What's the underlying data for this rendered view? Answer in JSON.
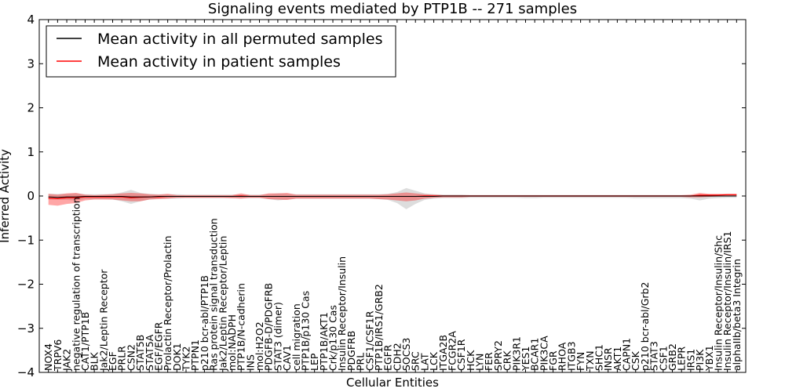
{
  "chart_data": {
    "type": "line",
    "title": "Signaling events mediated by PTP1B -- 271 samples",
    "xlabel": "Cellular Entities",
    "ylabel": "Inferred Activity",
    "ylim": [
      -4,
      4
    ],
    "yticks": [
      -4,
      -3,
      -2,
      -1,
      0,
      1,
      2,
      3,
      4
    ],
    "legend_position": "top-left",
    "categories": [
      "NOX4",
      "TRPV6",
      "JAK2",
      "negative regulation of transcription",
      "CAT1/PTP1B",
      "BLK",
      "Jak2/Leptin Receptor",
      "EGF",
      "PRLR",
      "CSN2",
      "STAT5B",
      "STAT5A",
      "EGF/EGFR",
      "Prolactin Receptor/Prolactin",
      "DOK1",
      "TYK2",
      "PTPN1",
      "p210 bcr-abl/PTP1B",
      "Ras protein signal transduction",
      "Jak2/Leptin Receptor/Leptin",
      "mol:NADPH",
      "PTP1B/N-cadherin",
      "INS",
      "mol:H2O2",
      "PDGFB-D/PDGFRB",
      "STAT3 (dimer)",
      "CAV1",
      "cell migration",
      "PTP1B/p130 Cas",
      "LEP",
      "PTP1B/AKT1",
      "Crk/p130 Cas",
      "Insulin Receptor/Insulin",
      "PDGFRB",
      "PRL",
      "CSF1/CSF1R",
      "PTP1B/IRS1/GRB2",
      "EGFR",
      "CDH2",
      "SOCS3",
      "SRC",
      "LAT",
      "LCK",
      "ITGA2B",
      "FCGR2A",
      "CSF1R",
      "HCK",
      "LYN",
      "FER",
      "SPRY2",
      "CRK",
      "PIK3R1",
      "YES1",
      "BCAR1",
      "PIK3CA",
      "FGR",
      "RHOA",
      "ITGB3",
      "FYN",
      "TXN",
      "SHC1",
      "INSR",
      "AKT1",
      "CAPN1",
      "CSK",
      "p210 bcr-abl/Grb2",
      "STAT3",
      "CSF1",
      "GRB2",
      "LEPR",
      "IRS1",
      "PI3K",
      "YBX1",
      "Insulin Receptor/Insulin/Shc",
      "Insulin Receptor/Insulin/IRS1",
      "alphaIIb/beta3 Integrin"
    ],
    "series": [
      {
        "name": "Mean activity in all permuted samples",
        "color": "#000000",
        "values": [
          -0.02,
          -0.03,
          -0.02,
          -0.02,
          -0.01,
          -0.01,
          -0.01,
          -0.01,
          -0.01,
          -0.02,
          -0.02,
          -0.02,
          -0.01,
          -0.01,
          -0.01,
          -0.01,
          -0.01,
          -0.01,
          -0.01,
          -0.01,
          -0.01,
          -0.01,
          -0.01,
          -0.01,
          -0.01,
          -0.01,
          -0.01,
          -0.01,
          -0.01,
          -0.01,
          -0.01,
          -0.01,
          -0.01,
          -0.01,
          -0.01,
          -0.01,
          -0.01,
          -0.01,
          -0.01,
          -0.01,
          -0.01,
          -0.01,
          -0.01,
          0.0,
          0.0,
          0.0,
          0.0,
          0.0,
          0.0,
          0.0,
          0.0,
          0.0,
          0.0,
          0.0,
          0.0,
          0.0,
          0.0,
          0.0,
          0.0,
          0.0,
          0.0,
          0.0,
          0.0,
          0.0,
          0.0,
          0.0,
          0.0,
          0.0,
          0.0,
          0.0,
          0.0,
          0.0,
          0.0,
          0.0,
          0.0,
          0.0
        ],
        "band_upper": [
          0.05,
          0.05,
          0.05,
          0.06,
          0.04,
          0.04,
          0.04,
          0.05,
          0.08,
          0.14,
          0.07,
          0.05,
          0.04,
          0.04,
          0.04,
          0.03,
          0.03,
          0.03,
          0.03,
          0.03,
          0.03,
          0.03,
          0.03,
          0.03,
          0.04,
          0.06,
          0.05,
          0.04,
          0.04,
          0.04,
          0.04,
          0.04,
          0.04,
          0.04,
          0.04,
          0.04,
          0.04,
          0.05,
          0.09,
          0.18,
          0.12,
          0.06,
          0.04,
          0.03,
          0.03,
          0.03,
          0.02,
          0.02,
          0.02,
          0.02,
          0.02,
          0.02,
          0.02,
          0.02,
          0.02,
          0.02,
          0.02,
          0.02,
          0.02,
          0.02,
          0.02,
          0.02,
          0.02,
          0.02,
          0.02,
          0.02,
          0.02,
          0.02,
          0.02,
          0.02,
          0.02,
          0.02,
          0.02,
          0.02,
          0.02,
          0.02
        ],
        "band_lower": [
          -0.08,
          -0.08,
          -0.09,
          -0.1,
          -0.07,
          -0.07,
          -0.07,
          -0.08,
          -0.12,
          -0.18,
          -0.12,
          -0.08,
          -0.06,
          -0.06,
          -0.06,
          -0.05,
          -0.05,
          -0.05,
          -0.05,
          -0.05,
          -0.05,
          -0.05,
          -0.05,
          -0.05,
          -0.07,
          -0.1,
          -0.08,
          -0.06,
          -0.06,
          -0.06,
          -0.06,
          -0.06,
          -0.06,
          -0.06,
          -0.06,
          -0.06,
          -0.07,
          -0.09,
          -0.16,
          -0.3,
          -0.18,
          -0.09,
          -0.06,
          -0.05,
          -0.05,
          -0.05,
          -0.04,
          -0.04,
          -0.04,
          -0.04,
          -0.04,
          -0.04,
          -0.05,
          -0.05,
          -0.04,
          -0.04,
          -0.04,
          -0.04,
          -0.04,
          -0.04,
          -0.04,
          -0.04,
          -0.04,
          -0.04,
          -0.05,
          -0.05,
          -0.05,
          -0.05,
          -0.05,
          -0.05,
          -0.06,
          -0.1,
          -0.06,
          -0.05,
          -0.04,
          -0.04
        ]
      },
      {
        "name": "Mean activity in patient samples",
        "color": "#ff0000",
        "values": [
          -0.05,
          -0.06,
          -0.04,
          -0.04,
          -0.02,
          -0.02,
          -0.02,
          -0.02,
          -0.02,
          -0.04,
          -0.03,
          -0.02,
          -0.02,
          -0.01,
          -0.01,
          -0.01,
          -0.01,
          -0.01,
          -0.01,
          -0.01,
          -0.01,
          0.0,
          -0.01,
          -0.01,
          -0.01,
          -0.01,
          -0.01,
          -0.01,
          -0.01,
          -0.01,
          -0.01,
          -0.01,
          -0.01,
          -0.01,
          -0.01,
          -0.01,
          -0.01,
          -0.01,
          -0.01,
          -0.01,
          -0.01,
          0.0,
          0.0,
          0.0,
          0.0,
          0.0,
          0.0,
          0.0,
          0.0,
          0.0,
          0.0,
          0.0,
          0.0,
          0.0,
          0.0,
          0.0,
          0.0,
          0.0,
          0.0,
          0.0,
          0.0,
          0.0,
          0.0,
          0.0,
          0.0,
          0.0,
          0.0,
          0.0,
          0.0,
          0.0,
          0.0,
          0.02,
          0.02,
          0.02,
          0.03,
          0.03
        ],
        "band_upper": [
          0.05,
          0.03,
          0.06,
          0.07,
          0.03,
          0.02,
          0.03,
          0.04,
          0.06,
          0.07,
          0.06,
          0.04,
          0.03,
          0.05,
          0.02,
          0.02,
          0.02,
          0.02,
          0.02,
          0.02,
          0.02,
          0.06,
          0.02,
          0.02,
          0.06,
          0.06,
          0.07,
          0.03,
          0.03,
          0.03,
          0.03,
          0.03,
          0.03,
          0.03,
          0.03,
          0.03,
          0.03,
          0.04,
          0.06,
          0.08,
          0.06,
          0.04,
          0.03,
          0.02,
          0.02,
          0.02,
          0.02,
          0.02,
          0.02,
          0.02,
          0.02,
          0.02,
          0.02,
          0.02,
          0.02,
          0.02,
          0.02,
          0.02,
          0.02,
          0.02,
          0.02,
          0.02,
          0.02,
          0.02,
          0.02,
          0.02,
          0.02,
          0.02,
          0.02,
          0.02,
          0.03,
          0.07,
          0.05,
          0.05,
          0.05,
          0.05
        ],
        "band_lower": [
          -0.2,
          -0.22,
          -0.18,
          -0.16,
          -0.1,
          -0.08,
          -0.08,
          -0.08,
          -0.1,
          -0.12,
          -0.12,
          -0.08,
          -0.07,
          -0.06,
          -0.04,
          -0.04,
          -0.04,
          -0.04,
          -0.04,
          -0.04,
          -0.05,
          -0.06,
          -0.04,
          -0.04,
          -0.07,
          -0.08,
          -0.09,
          -0.06,
          -0.06,
          -0.06,
          -0.06,
          -0.06,
          -0.06,
          -0.06,
          -0.06,
          -0.06,
          -0.07,
          -0.08,
          -0.1,
          -0.12,
          -0.1,
          -0.06,
          -0.04,
          -0.03,
          -0.03,
          -0.03,
          -0.02,
          -0.02,
          -0.02,
          -0.02,
          -0.02,
          -0.02,
          -0.02,
          -0.02,
          -0.02,
          -0.02,
          -0.02,
          -0.02,
          -0.02,
          -0.02,
          -0.02,
          -0.02,
          -0.02,
          -0.02,
          -0.02,
          -0.02,
          -0.02,
          -0.02,
          -0.02,
          -0.02,
          -0.03,
          -0.03,
          -0.02,
          -0.01,
          -0.01,
          -0.01
        ]
      }
    ]
  }
}
